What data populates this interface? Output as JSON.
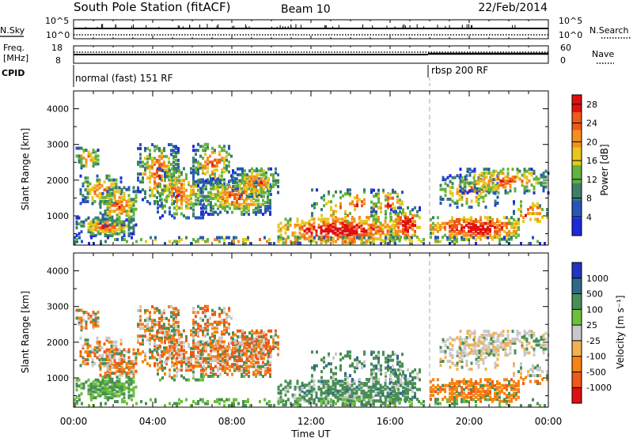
{
  "header": {
    "station": "South Pole Station (fitACF)",
    "beam": "Beam 10",
    "date": "22/Feb/2014"
  },
  "strip": {
    "nsky_label": "N.Sky",
    "noise_ticks_left": [
      "10^5",
      "10^0"
    ],
    "noise_ticks_right": [
      "10^5",
      "10^0"
    ],
    "nsearch_label": "N.Search",
    "freq_label_line1": "Freq.",
    "freq_label_line2": "[MHz]",
    "freq_ticks": [
      "18",
      "8"
    ],
    "nave_ticks": [
      "60",
      "0"
    ],
    "nave_label": "Nave",
    "cpid_label": "CPID",
    "cpid_segments": [
      {
        "label": "normal (fast) 151 RF",
        "start_hour": 0
      },
      {
        "label": "rbsp 200 RF",
        "start_hour": 18
      }
    ]
  },
  "colors": {
    "power_scale": [
      "#1f2ad9",
      "#2755b8",
      "#3a7f6a",
      "#62b33f",
      "#e6c81e",
      "#f59020",
      "#ee5a18",
      "#e01010"
    ],
    "velocity_scale": [
      "#e01010",
      "#ee5a18",
      "#f78410",
      "#f2b050",
      "#c8c8c8",
      "#6cc03c",
      "#4a8e56",
      "#2d6a8a",
      "#2035c0"
    ]
  },
  "chart_data": [
    {
      "type": "heatmap",
      "panel": "power",
      "xlabel": "",
      "ylabel": "Slant Range [km]",
      "x_ticks": [
        "00:00",
        "04:00",
        "08:00",
        "12:00",
        "16:00",
        "20:00",
        "00:00"
      ],
      "x_range_hours": [
        0,
        24
      ],
      "y_ticks": [
        1000,
        2000,
        3000,
        4000
      ],
      "y_range_km": [
        180,
        4500
      ],
      "colorbar": {
        "label": "Power [dB]",
        "ticks": [
          4,
          8,
          12,
          16,
          20,
          24,
          28
        ],
        "range": [
          0,
          30
        ]
      },
      "mode_change_hour": 18
    },
    {
      "type": "heatmap",
      "panel": "velocity",
      "xlabel": "Time UT",
      "ylabel": "Slant Range [km]",
      "x_ticks": [
        "00:00",
        "04:00",
        "08:00",
        "12:00",
        "16:00",
        "20:00",
        "00:00"
      ],
      "x_range_hours": [
        0,
        24
      ],
      "y_ticks": [
        1000,
        2000,
        3000,
        4000
      ],
      "y_range_km": [
        180,
        4500
      ],
      "colorbar": {
        "label": "Velocity [m s⁻¹]",
        "ticks": [
          "1000",
          "500",
          "100",
          "25",
          "-25",
          "-100",
          "-500",
          "-1000"
        ]
      },
      "mode_change_hour": 18
    }
  ]
}
